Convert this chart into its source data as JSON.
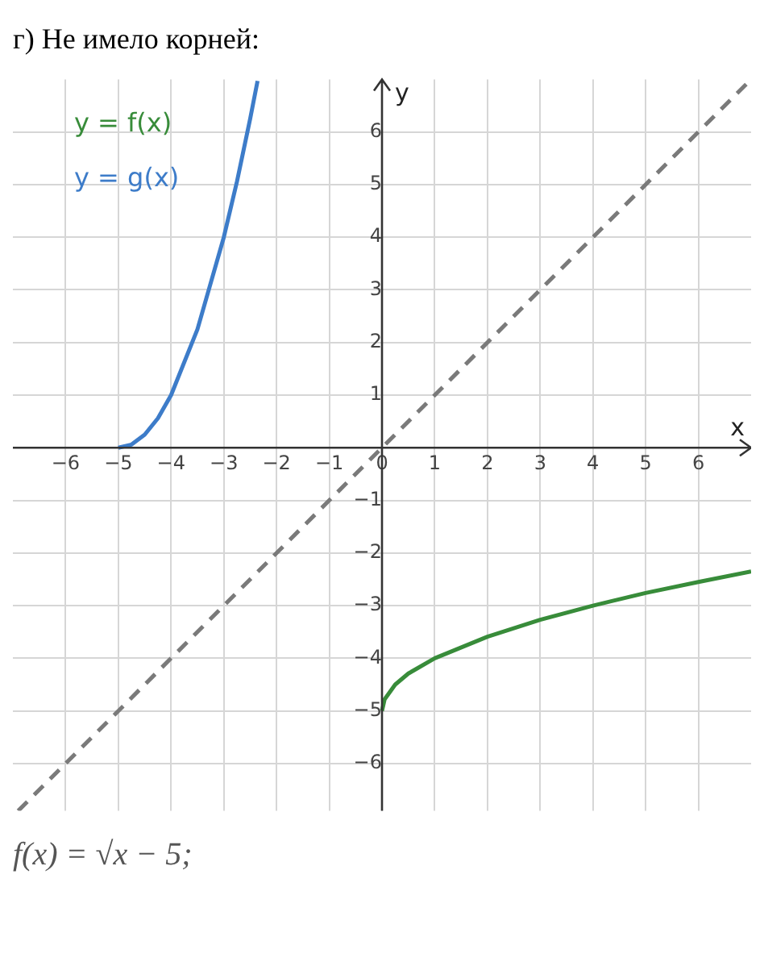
{
  "chart_data": {
    "type": "line",
    "title": "г) Не имело корней:",
    "xlabel": "x",
    "ylabel": "y",
    "annotations": [
      "f(x) = √x − 5;"
    ],
    "legend": "top left",
    "grid": true,
    "marker": "none",
    "xlim": [
      -7,
      7
    ],
    "ylim": [
      -6.9,
      7
    ],
    "xticks": [
      -6,
      -5,
      -4,
      -3,
      -2,
      -1,
      0,
      1,
      2,
      3,
      4,
      5,
      6
    ],
    "yticks": [
      -6,
      -5,
      -4,
      -3,
      -2,
      -1,
      {
        "value": 0,
        "label": null
      },
      1,
      2,
      3,
      4,
      5,
      6
    ],
    "series": [
      {
        "name": "y = f(x)",
        "color": "#388c3a",
        "x": [
          0,
          0.05,
          0.25,
          0.5,
          1,
          2,
          3,
          4,
          5,
          6,
          7
        ],
        "values": [
          -5,
          -4.78,
          -4.5,
          -4.29,
          -4,
          -3.59,
          -3.27,
          -3,
          -2.76,
          -2.55,
          -2.35
        ]
      },
      {
        "name": "y = g(x)",
        "color": "#3d7cc9",
        "x": [
          -5,
          -4.75,
          -4.5,
          -4.25,
          -4,
          -3.5,
          -3,
          -2.75,
          -2.5,
          -2.36
        ],
        "values": [
          0,
          0.06,
          0.25,
          0.56,
          1,
          2.25,
          4,
          5.06,
          6.25,
          6.97
        ]
      },
      {
        "color": "#7a7a7a",
        "line_style": "dashed",
        "x": [
          -6.9,
          7
        ],
        "values": [
          -6.9,
          7
        ]
      }
    ]
  }
}
